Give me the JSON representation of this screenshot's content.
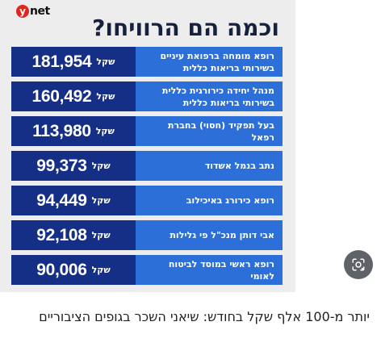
{
  "logo": {
    "y": "y",
    "net": "net"
  },
  "title": "וכמה הם הרוויחו?",
  "rows": [
    {
      "desc_line1": "רופא מומחה ברפואת עיניים",
      "desc_line2": "בשירותי בריאות כללית",
      "amount": "181,954",
      "currency": "שקל"
    },
    {
      "desc_line1": "מנהל יחידה כירורגית כללית",
      "desc_line2": "בשירותי בריאות כללית",
      "amount": "160,492",
      "currency": "שקל"
    },
    {
      "desc_line1": "בעל תפקיד (חסוי) בחברת רפאל",
      "desc_line2": "",
      "amount": "113,980",
      "currency": "שקל"
    },
    {
      "desc_line1": "נתב בנמל אשדוד",
      "desc_line2": "",
      "amount": "99,373",
      "currency": "שקל"
    },
    {
      "desc_line1": "רופא כירורג באיכילוב",
      "desc_line2": "",
      "amount": "94,449",
      "currency": "שקל"
    },
    {
      "desc_line1": "אבי דותן מנכ\"ל פי גלילות",
      "desc_line2": "",
      "amount": "92,108",
      "currency": "שקל"
    },
    {
      "desc_line1": "רופא ראשי במוסד לביטוח לאומי",
      "desc_line2": "",
      "amount": "90,006",
      "currency": "שקל"
    }
  ],
  "caption": "יותר מ-100 אלף שקל בחודש: שיאני השכר בגופים הציבוריים",
  "icons": {
    "lens": "google-lens-icon"
  },
  "colors": {
    "title": "#16213d",
    "amount_bg": "#152f86",
    "desc_bg": "#2d6fd8",
    "logo_red": "#e0261d",
    "panel": "#ededed"
  }
}
